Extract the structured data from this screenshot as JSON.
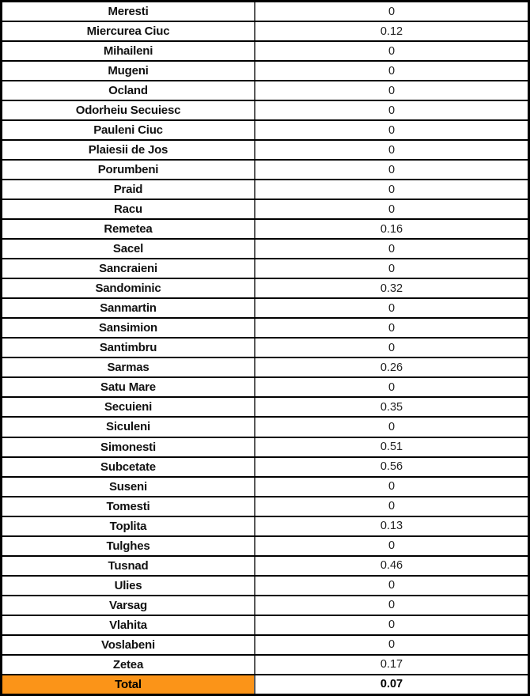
{
  "chart_data": {
    "type": "table",
    "rows": [
      {
        "name": "Meresti",
        "value": "0"
      },
      {
        "name": "Miercurea Ciuc",
        "value": "0.12"
      },
      {
        "name": "Mihaileni",
        "value": "0"
      },
      {
        "name": "Mugeni",
        "value": "0"
      },
      {
        "name": "Ocland",
        "value": "0"
      },
      {
        "name": "Odorheiu Secuiesc",
        "value": "0"
      },
      {
        "name": "Pauleni Ciuc",
        "value": "0"
      },
      {
        "name": "Plaiesii de Jos",
        "value": "0"
      },
      {
        "name": "Porumbeni",
        "value": "0"
      },
      {
        "name": "Praid",
        "value": "0"
      },
      {
        "name": "Racu",
        "value": "0"
      },
      {
        "name": "Remetea",
        "value": "0.16"
      },
      {
        "name": "Sacel",
        "value": "0"
      },
      {
        "name": "Sancraieni",
        "value": "0"
      },
      {
        "name": "Sandominic",
        "value": "0.32"
      },
      {
        "name": "Sanmartin",
        "value": "0"
      },
      {
        "name": "Sansimion",
        "value": "0"
      },
      {
        "name": "Santimbru",
        "value": "0"
      },
      {
        "name": "Sarmas",
        "value": "0.26"
      },
      {
        "name": "Satu Mare",
        "value": "0"
      },
      {
        "name": "Secuieni",
        "value": "0.35"
      },
      {
        "name": "Siculeni",
        "value": "0"
      },
      {
        "name": "Simonesti",
        "value": "0.51"
      },
      {
        "name": "Subcetate",
        "value": "0.56"
      },
      {
        "name": "Suseni",
        "value": "0"
      },
      {
        "name": "Tomesti",
        "value": "0"
      },
      {
        "name": "Toplita",
        "value": "0.13"
      },
      {
        "name": "Tulghes",
        "value": "0"
      },
      {
        "name": "Tusnad",
        "value": "0.46"
      },
      {
        "name": "Ulies",
        "value": "0"
      },
      {
        "name": "Varsag",
        "value": "0"
      },
      {
        "name": "Vlahita",
        "value": "0"
      },
      {
        "name": "Voslabeni",
        "value": "0"
      },
      {
        "name": "Zetea",
        "value": "0.17"
      }
    ],
    "total_row": {
      "label": "Total",
      "value": "0.07",
      "bg_color": "#FB9418"
    },
    "layout": {
      "grid_color": "#000000",
      "divider_color": "#595959"
    }
  }
}
